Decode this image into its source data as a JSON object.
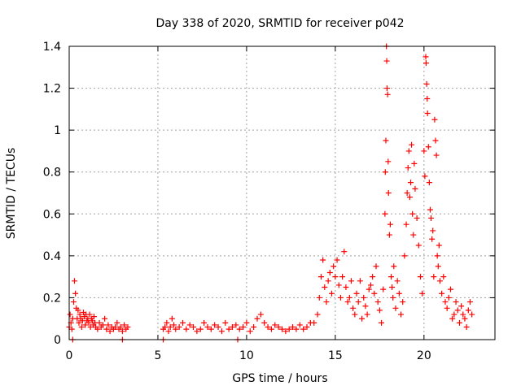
{
  "chart_data": {
    "type": "scatter",
    "title": "Day 338 of 2020, SRMTID for receiver p042",
    "xlabel": "GPS time / hours",
    "ylabel": "SRMTID / TECUs",
    "xlim": [
      0,
      24
    ],
    "ylim": [
      0,
      1.4
    ],
    "xticks": [
      0,
      5,
      10,
      15,
      20
    ],
    "xtick_labels": [
      "0",
      "5",
      "10",
      "15",
      "20"
    ],
    "yticks": [
      0,
      0.2,
      0.4,
      0.6,
      0.8,
      1.0,
      1.2,
      1.4
    ],
    "ytick_labels": [
      "0",
      "0.2",
      "0.4",
      "0.6",
      "0.8",
      "1",
      "1.2",
      "1.4"
    ],
    "grid": true,
    "marker": "+",
    "color": "#ff0000",
    "series": [
      {
        "name": "SRMTID",
        "x": [
          0.0,
          0.05,
          0.1,
          0.15,
          0.2,
          0.25,
          0.3,
          0.35,
          0.4,
          0.45,
          0.5,
          0.55,
          0.6,
          0.65,
          0.7,
          0.75,
          0.8,
          0.85,
          0.9,
          0.95,
          1.0,
          1.05,
          1.1,
          1.15,
          1.2,
          1.25,
          1.3,
          1.35,
          1.4,
          1.45,
          1.5,
          1.6,
          1.7,
          1.8,
          1.9,
          2.0,
          2.1,
          2.2,
          2.3,
          2.4,
          2.5,
          2.6,
          2.7,
          2.8,
          2.9,
          3.0,
          3.1,
          3.2,
          3.3,
          0.2,
          3.0,
          5.3,
          5.4,
          5.5,
          5.6,
          5.7,
          5.8,
          5.9,
          6.0,
          6.2,
          6.4,
          6.6,
          6.8,
          7.0,
          7.2,
          7.4,
          7.6,
          7.8,
          8.0,
          8.2,
          8.4,
          8.6,
          8.8,
          9.0,
          9.2,
          9.4,
          9.6,
          9.8,
          10.0,
          10.2,
          10.4,
          10.6,
          10.8,
          11.0,
          11.2,
          11.4,
          11.6,
          11.8,
          12.0,
          12.2,
          12.4,
          12.6,
          12.8,
          13.0,
          13.2,
          13.4,
          13.6,
          5.3,
          9.5,
          13.8,
          14.0,
          14.1,
          14.2,
          14.3,
          14.4,
          14.5,
          14.6,
          14.7,
          14.8,
          14.9,
          15.0,
          15.1,
          15.2,
          15.3,
          15.4,
          15.5,
          15.6,
          15.7,
          15.8,
          15.9,
          16.0,
          16.1,
          16.2,
          16.3,
          16.4,
          16.5,
          16.6,
          16.7,
          16.8,
          16.9,
          17.0,
          17.1,
          17.2,
          17.3,
          17.4,
          17.5,
          17.6,
          17.7,
          17.8,
          17.82,
          17.85,
          17.88,
          17.9,
          17.92,
          17.95,
          17.98,
          18.0,
          18.05,
          18.1,
          18.15,
          18.2,
          18.25,
          18.3,
          18.4,
          18.5,
          18.6,
          18.7,
          18.8,
          18.9,
          19.0,
          19.05,
          19.1,
          19.15,
          19.2,
          19.25,
          19.3,
          19.35,
          19.4,
          19.45,
          19.5,
          19.6,
          19.7,
          19.8,
          19.9,
          20.0,
          20.05,
          20.1,
          20.12,
          20.15,
          20.18,
          20.2,
          20.25,
          20.3,
          20.35,
          20.4,
          20.45,
          20.5,
          20.55,
          20.6,
          20.65,
          20.7,
          20.75,
          20.8,
          20.85,
          20.9,
          21.0,
          21.1,
          21.2,
          21.3,
          21.4,
          21.5,
          21.6,
          21.7,
          21.8,
          21.9,
          22.0,
          22.1,
          22.2,
          22.3,
          22.4,
          22.5,
          22.6,
          22.7
        ],
        "y": [
          0.06,
          0.12,
          0.08,
          0.05,
          0.1,
          0.18,
          0.28,
          0.22,
          0.15,
          0.1,
          0.14,
          0.08,
          0.12,
          0.1,
          0.06,
          0.09,
          0.13,
          0.11,
          0.07,
          0.12,
          0.09,
          0.1,
          0.08,
          0.12,
          0.06,
          0.1,
          0.09,
          0.07,
          0.11,
          0.08,
          0.06,
          0.05,
          0.08,
          0.06,
          0.07,
          0.1,
          0.05,
          0.07,
          0.04,
          0.06,
          0.05,
          0.06,
          0.08,
          0.05,
          0.06,
          0.04,
          0.07,
          0.05,
          0.06,
          0.0,
          0.0,
          0.05,
          0.06,
          0.08,
          0.04,
          0.06,
          0.1,
          0.07,
          0.05,
          0.06,
          0.08,
          0.05,
          0.07,
          0.06,
          0.04,
          0.05,
          0.08,
          0.06,
          0.05,
          0.07,
          0.06,
          0.04,
          0.08,
          0.05,
          0.06,
          0.07,
          0.05,
          0.06,
          0.08,
          0.04,
          0.06,
          0.1,
          0.12,
          0.08,
          0.06,
          0.05,
          0.07,
          0.06,
          0.05,
          0.04,
          0.05,
          0.06,
          0.05,
          0.07,
          0.05,
          0.06,
          0.08,
          0.0,
          0.0,
          0.08,
          0.12,
          0.2,
          0.3,
          0.38,
          0.25,
          0.18,
          0.28,
          0.32,
          0.22,
          0.35,
          0.3,
          0.38,
          0.26,
          0.2,
          0.3,
          0.42,
          0.25,
          0.18,
          0.2,
          0.28,
          0.15,
          0.12,
          0.22,
          0.18,
          0.28,
          0.1,
          0.2,
          0.16,
          0.12,
          0.24,
          0.26,
          0.3,
          0.22,
          0.35,
          0.18,
          0.14,
          0.08,
          0.24,
          0.6,
          0.8,
          0.95,
          1.4,
          1.33,
          1.2,
          1.17,
          0.85,
          0.7,
          0.5,
          0.55,
          0.3,
          0.25,
          0.2,
          0.35,
          0.15,
          0.28,
          0.22,
          0.12,
          0.18,
          0.4,
          0.55,
          0.7,
          0.82,
          0.9,
          0.68,
          0.75,
          0.93,
          0.6,
          0.5,
          0.84,
          0.72,
          0.58,
          0.45,
          0.3,
          0.22,
          0.9,
          0.78,
          1.35,
          1.32,
          1.22,
          1.15,
          1.08,
          0.92,
          0.75,
          0.62,
          0.58,
          0.48,
          0.52,
          0.3,
          1.05,
          0.95,
          0.88,
          0.4,
          0.35,
          0.45,
          0.28,
          0.22,
          0.3,
          0.18,
          0.15,
          0.2,
          0.24,
          0.1,
          0.12,
          0.18,
          0.14,
          0.08,
          0.16,
          0.12,
          0.1,
          0.06,
          0.14,
          0.18,
          0.12
        ]
      }
    ]
  }
}
